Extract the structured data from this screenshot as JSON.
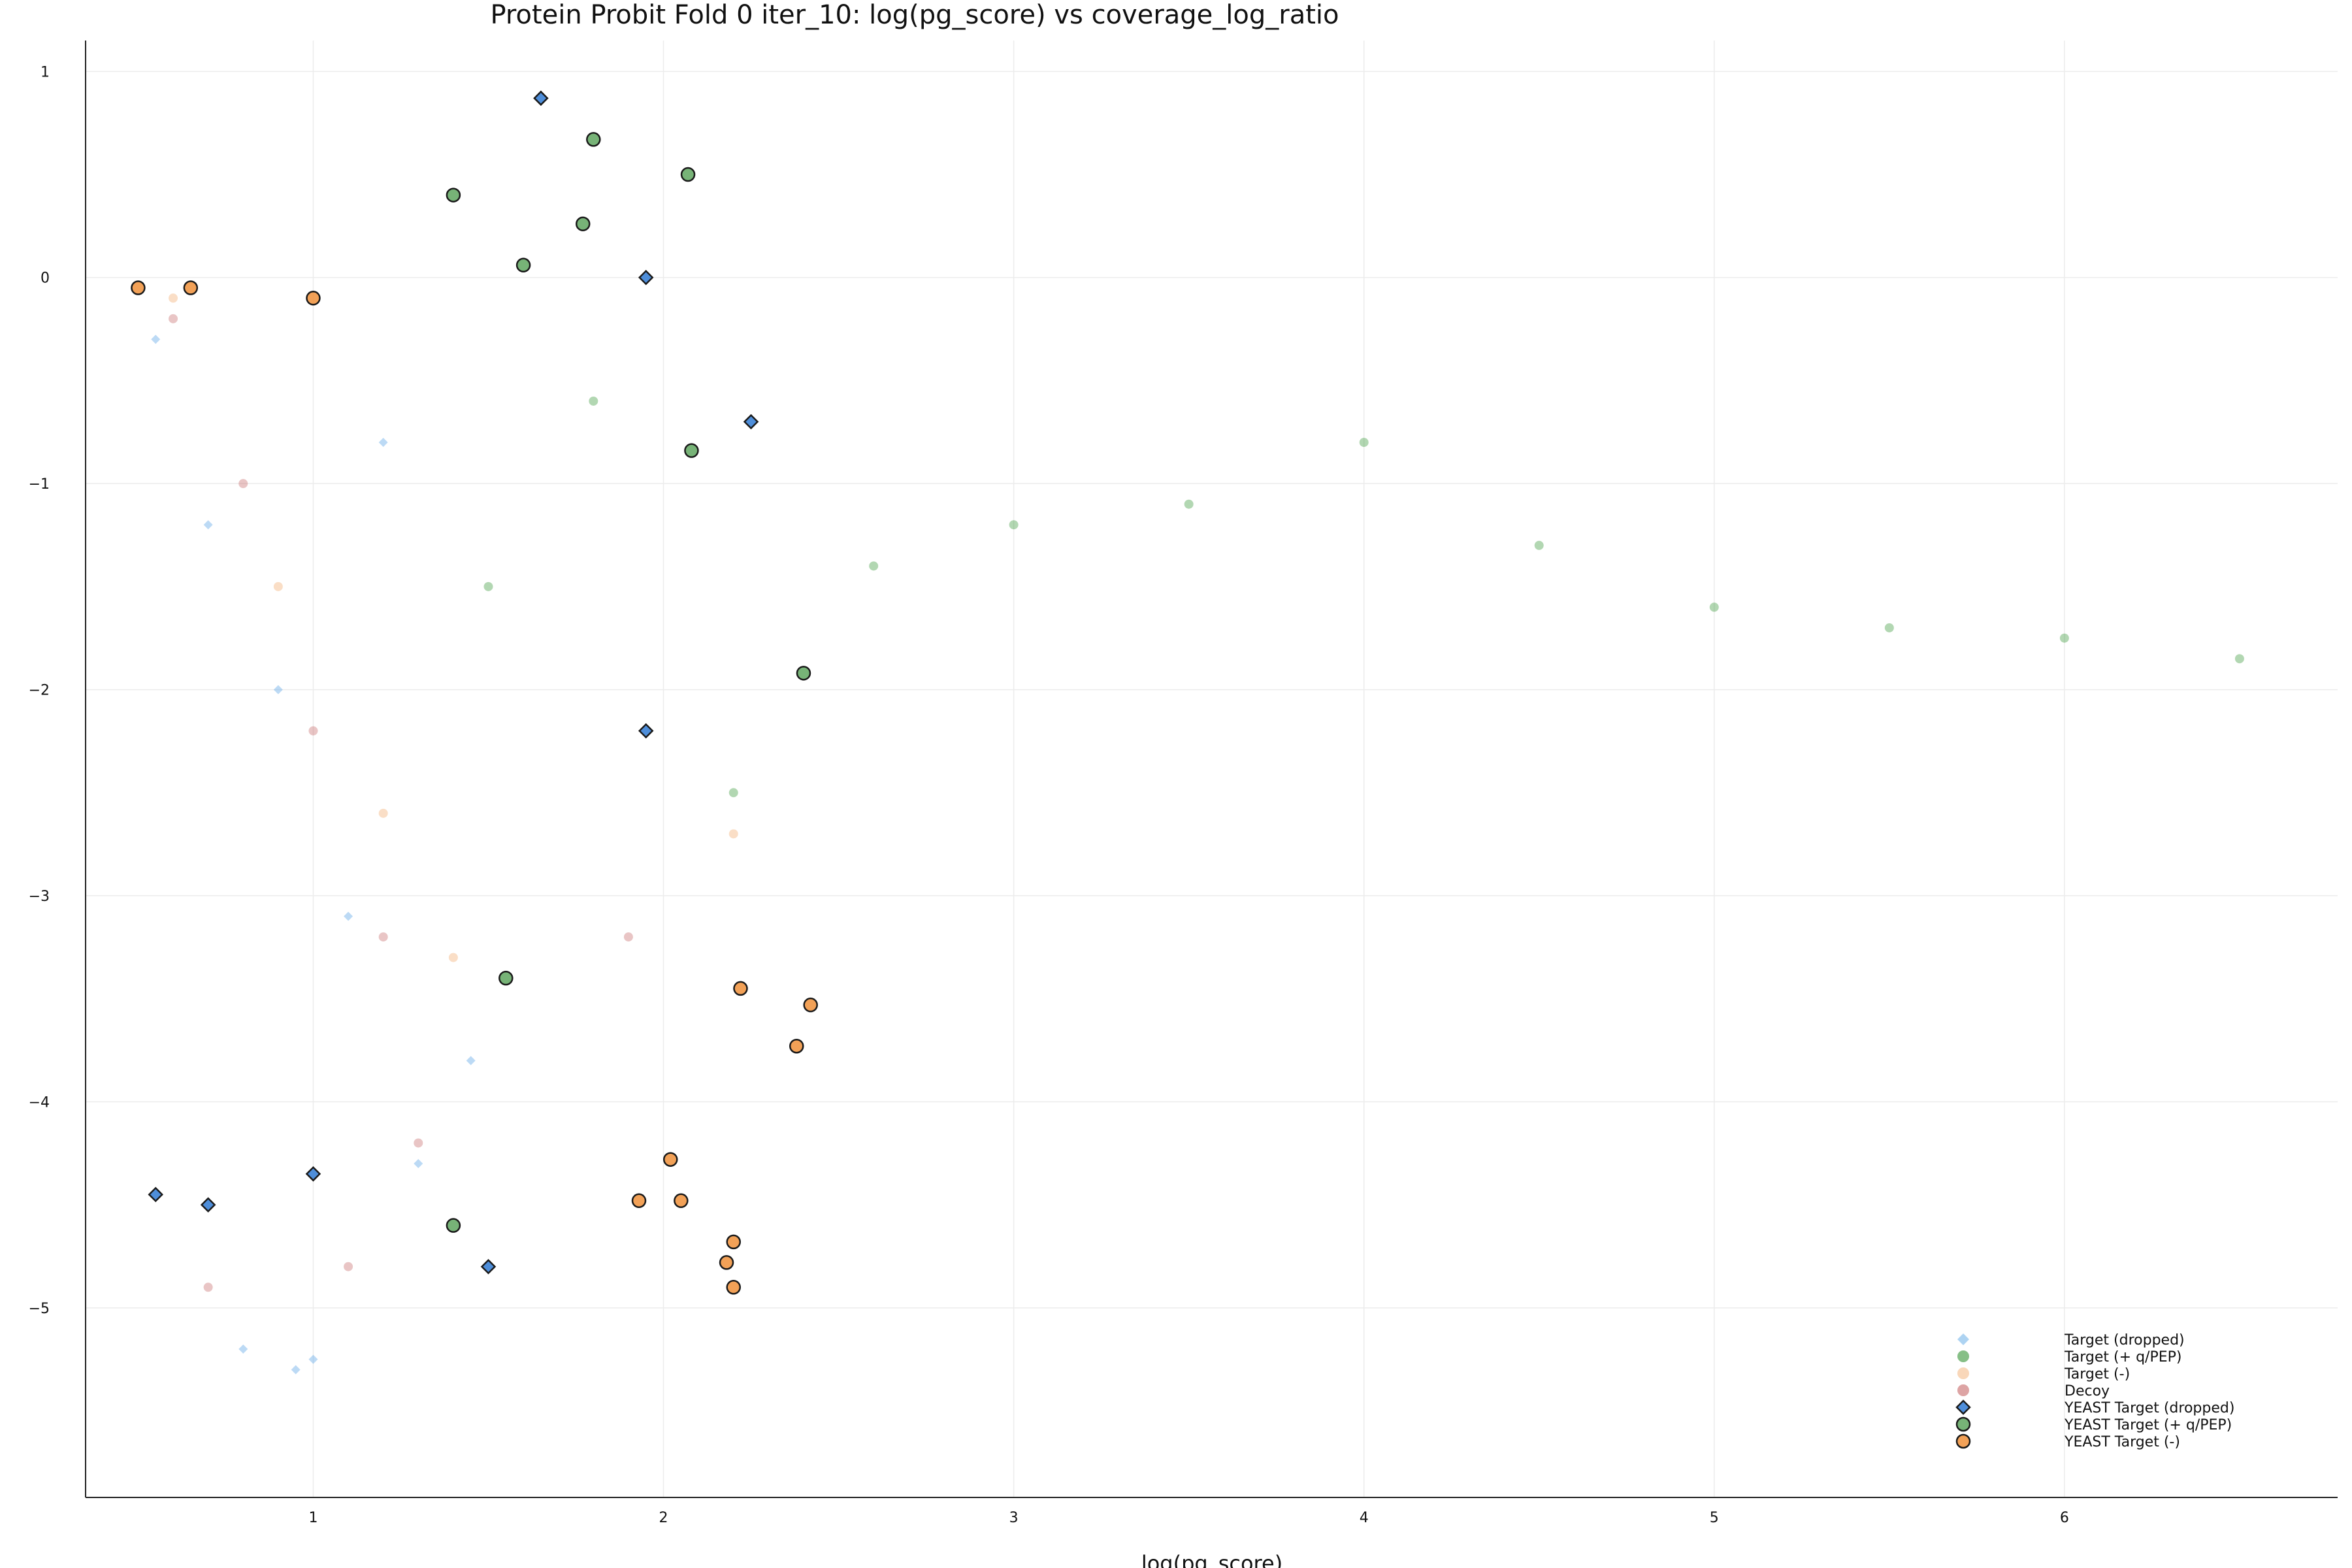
{
  "chart_data": {
    "type": "scatter",
    "title": "Protein Probit Fold 0 iter_10: log(pg_score) vs coverage_log_ratio",
    "xlabel": "log(pg_score)",
    "ylabel": "",
    "xlim": [
      0.35,
      6.78
    ],
    "ylim": [
      -5.92,
      1.15
    ],
    "xticks": [
      1,
      2,
      3,
      4,
      5,
      6
    ],
    "yticks": [
      1,
      0,
      -1,
      -2,
      -3,
      -4,
      -5
    ],
    "grid": true,
    "legend_position": "bottom-right",
    "series": [
      {
        "name": "Target (dropped)",
        "marker": "diamond",
        "color": "#6aaee8",
        "opacity": 0.45,
        "points": [
          [
            0.55,
            -0.3
          ],
          [
            0.7,
            -1.2
          ],
          [
            0.9,
            -2.0
          ],
          [
            1.1,
            -3.1
          ],
          [
            1.3,
            -4.3
          ],
          [
            0.8,
            -5.2
          ],
          [
            1.0,
            -5.25
          ],
          [
            0.95,
            -5.3
          ],
          [
            1.2,
            -0.8
          ],
          [
            1.45,
            -3.8
          ]
        ]
      },
      {
        "name": "Target (+ q/PEP)",
        "marker": "circle",
        "color": "#228b22",
        "opacity": 0.35,
        "points": [
          [
            1.5,
            -1.5
          ],
          [
            1.8,
            -0.6
          ],
          [
            2.2,
            -2.5
          ],
          [
            2.6,
            -1.4
          ],
          [
            3.0,
            -1.2
          ],
          [
            3.5,
            -1.1
          ],
          [
            4.0,
            -0.8
          ],
          [
            4.5,
            -1.3
          ],
          [
            5.0,
            -1.6
          ],
          [
            5.5,
            -1.7
          ],
          [
            6.0,
            -1.75
          ],
          [
            6.5,
            -1.85
          ]
        ]
      },
      {
        "name": "Target (-)",
        "marker": "circle",
        "color": "#f4b680",
        "opacity": 0.45,
        "points": [
          [
            0.6,
            -0.1
          ],
          [
            0.9,
            -1.5
          ],
          [
            1.2,
            -2.6
          ],
          [
            1.4,
            -3.3
          ],
          [
            2.2,
            -2.7
          ]
        ]
      },
      {
        "name": "Decoy",
        "marker": "circle",
        "color": "#c15a5a",
        "opacity": 0.35,
        "points": [
          [
            0.6,
            -0.2
          ],
          [
            0.8,
            -1.0
          ],
          [
            1.0,
            -2.2
          ],
          [
            1.2,
            -3.2
          ],
          [
            1.3,
            -4.2
          ],
          [
            0.7,
            -4.9
          ],
          [
            1.1,
            -4.8
          ],
          [
            1.9,
            -3.2
          ]
        ]
      },
      {
        "name": "YEAST Target (dropped)",
        "marker": "diamond",
        "color": "#3b82d6",
        "opacity": 0.9,
        "points": [
          [
            1.65,
            0.87
          ],
          [
            0.55,
            -4.45
          ],
          [
            0.7,
            -4.5
          ],
          [
            1.0,
            -4.35
          ],
          [
            1.5,
            -4.8
          ],
          [
            1.95,
            -2.2
          ],
          [
            2.25,
            -0.7
          ],
          [
            1.95,
            0.0
          ]
        ]
      },
      {
        "name": "YEAST Target (+ q/PEP)",
        "marker": "circle",
        "color": "#2e8b2e",
        "opacity": 0.65,
        "points": [
          [
            1.4,
            0.4
          ],
          [
            1.8,
            0.67
          ],
          [
            2.07,
            0.5
          ],
          [
            1.77,
            0.26
          ],
          [
            1.6,
            0.06
          ],
          [
            2.08,
            -0.84
          ],
          [
            2.4,
            -1.92
          ],
          [
            1.55,
            -3.4
          ],
          [
            1.4,
            -4.6
          ]
        ]
      },
      {
        "name": "YEAST Target (-)",
        "marker": "circle",
        "color": "#f0913a",
        "opacity": 0.85,
        "points": [
          [
            0.5,
            -0.05
          ],
          [
            0.65,
            -0.05
          ],
          [
            1.0,
            -0.1
          ],
          [
            2.22,
            -3.45
          ],
          [
            2.42,
            -3.53
          ],
          [
            2.38,
            -3.73
          ],
          [
            2.02,
            -4.28
          ],
          [
            2.05,
            -4.48
          ],
          [
            1.93,
            -4.48
          ],
          [
            2.18,
            -4.78
          ],
          [
            2.2,
            -4.9
          ],
          [
            2.2,
            -4.68
          ]
        ]
      }
    ]
  }
}
